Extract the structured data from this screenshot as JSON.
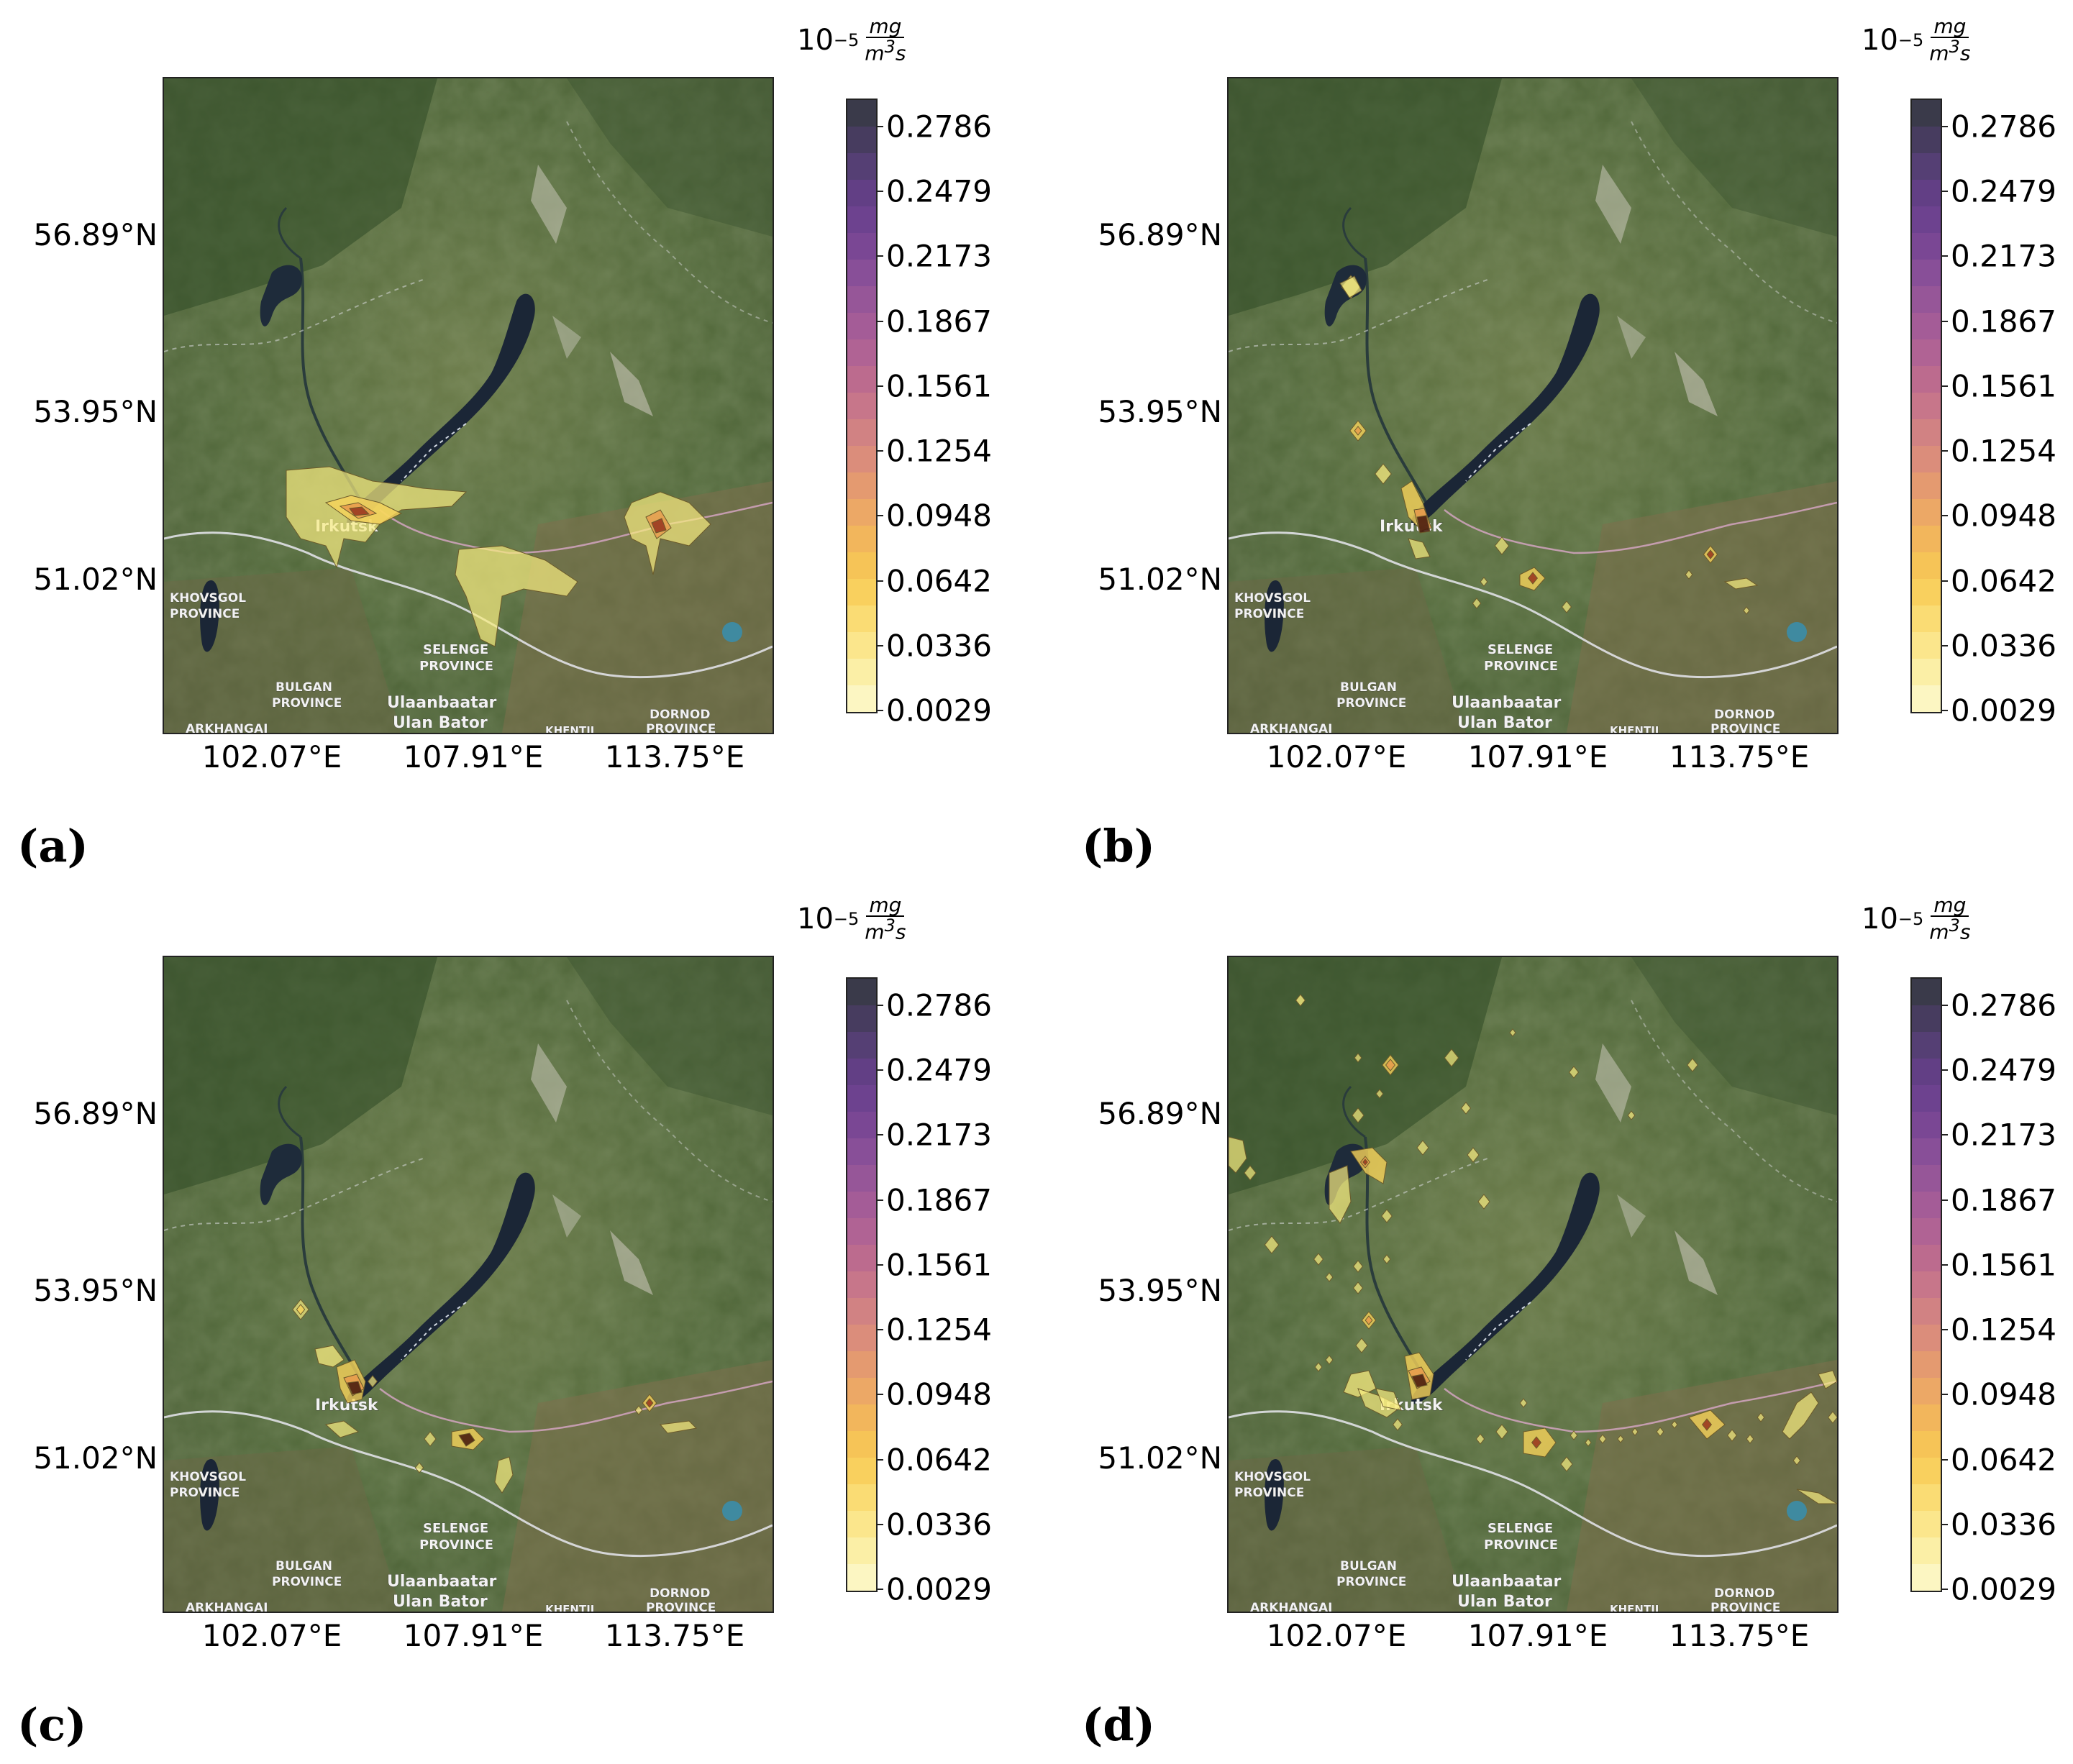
{
  "colorbar": {
    "unit_base": "10",
    "unit_exp": "−5",
    "unit_num": "mg",
    "unit_den_base": "m",
    "unit_den_exp": "3",
    "unit_den_tail": "s",
    "ticks": [
      "0.2786",
      "0.2479",
      "0.2173",
      "0.1867",
      "0.1561",
      "0.1254",
      "0.0948",
      "0.0642",
      "0.0336",
      "0.0029"
    ],
    "colors_top_to_bottom": [
      "#3a3a4a",
      "#473c5f",
      "#553f74",
      "#623f85",
      "#6d428f",
      "#7a4794",
      "#884f98",
      "#965698",
      "#a45c97",
      "#b06394",
      "#bc6b8e",
      "#c7768a",
      "#d18283",
      "#db8d7b",
      "#e49a70",
      "#eca866",
      "#f2b65c",
      "#f6c457",
      "#f9d05e",
      "#fadc74",
      "#fbe68c",
      "#fbefa6",
      "#fcf6c2"
    ]
  },
  "lat_ticks": [
    "56.89°N",
    "53.95°N",
    "51.02°N"
  ],
  "lon_ticks": [
    "102.07°E",
    "107.91°E",
    "113.75°E"
  ],
  "places": {
    "irkutsk": "Irkutsk",
    "khovsgol_1": "KHOVSGOL",
    "khovsgol_2": "PROVINCE",
    "selenge_1": "SELENGE",
    "selenge_2": "PROVINCE",
    "bulgan_1": "BULGAN",
    "bulgan_2": "PROVINCE",
    "ulaanbaatar": "Ulaanbaatar",
    "ulan_bator": "Ulan Bator",
    "dornod_1": "DORNOD",
    "dornod_2": "PROVINCE",
    "arkhangai": "ARKHANGAI",
    "khentii": "KHENTII"
  },
  "panels": [
    {
      "label": "(a)"
    },
    {
      "label": "(b)"
    },
    {
      "label": "(c)"
    },
    {
      "label": "(d)"
    }
  ]
}
